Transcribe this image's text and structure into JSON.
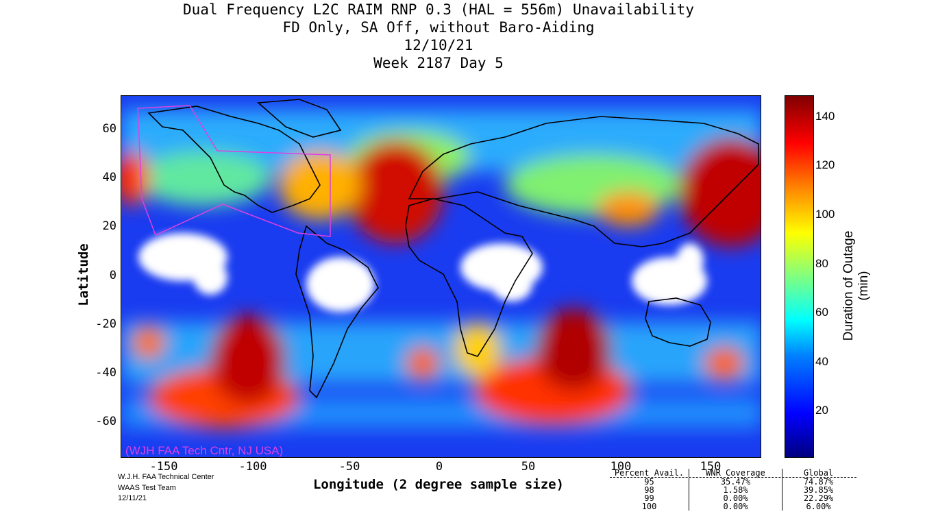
{
  "title": {
    "line1": "Dual Frequency L2C RAIM RNP 0.3 (HAL = 556m) Unavailability",
    "line2": "FD Only, SA Off, without Baro-Aiding",
    "line3": "12/10/21",
    "line4": "Week 2187 Day 5"
  },
  "axes": {
    "xlabel": "Longitude (2 degree sample size)",
    "ylabel": "Latitude",
    "xticks": [
      "-150",
      "-100",
      "-50",
      "0",
      "50",
      "100",
      "150"
    ],
    "yticks": [
      "60",
      "40",
      "20",
      "0",
      "-20",
      "-40",
      "-60"
    ],
    "xlim": [
      -180,
      180
    ],
    "ylim": [
      -75,
      72
    ]
  },
  "colorbar": {
    "label": "Duration of Outage (min)",
    "ticks": [
      "140",
      "120",
      "100",
      "80",
      "60",
      "40",
      "20"
    ],
    "range": [
      0,
      150
    ]
  },
  "watermark": "(WJH FAA Tech Cntr, NJ USA)",
  "credit": {
    "line1": "W.J.H. FAA Technical Center",
    "line2": "WAAS Test Team",
    "line3": "12/11/21"
  },
  "stats": {
    "header": [
      "Percent Avail.",
      "WNR Coverage",
      "Global"
    ],
    "rows": [
      [
        "95",
        "35.47%",
        "74.87%"
      ],
      [
        "98",
        "1.58%",
        "39.85%"
      ],
      [
        "99",
        "0.00%",
        "22.29%"
      ],
      [
        "100",
        "0.00%",
        "6.00%"
      ]
    ]
  },
  "colors": {
    "low": "#000080",
    "mid": "#00ffff",
    "high": "#800000",
    "region_outline": "#e040e0"
  }
}
